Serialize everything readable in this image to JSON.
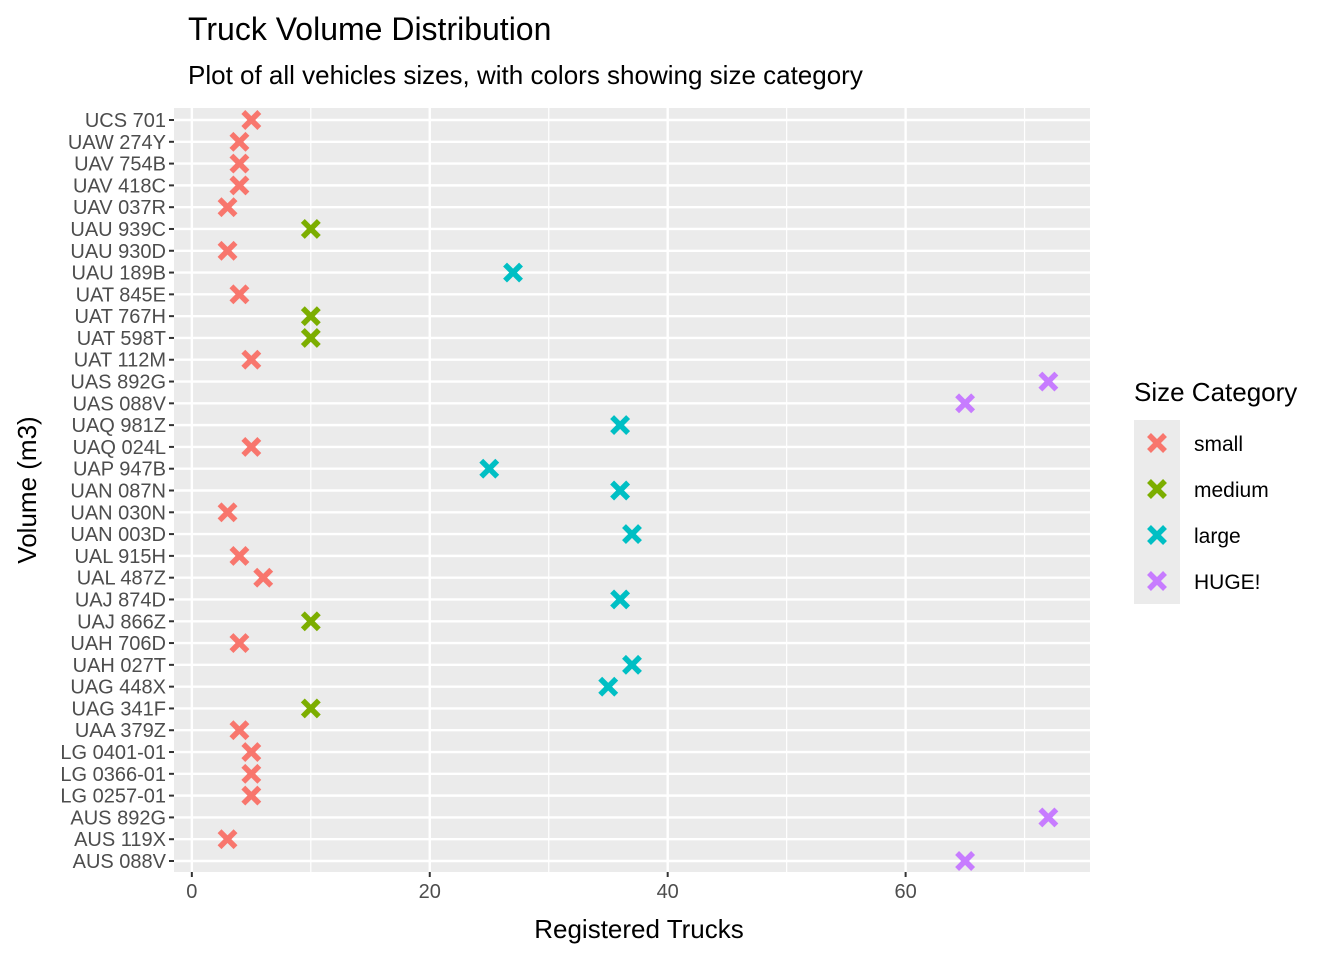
{
  "chart_data": {
    "type": "scatter",
    "title": "Truck Volume Distribution",
    "subtitle": "Plot of all vehicles sizes, with colors showing size category",
    "xlabel": "Registered Trucks",
    "ylabel": "Volume (m3)",
    "xlim": [
      -1.5,
      75.5
    ],
    "xticks": [
      0,
      20,
      40,
      60
    ],
    "grid": true,
    "legend": {
      "title": "Size Category",
      "placement": "right",
      "entries": [
        {
          "name": "small",
          "color": "#F8766D"
        },
        {
          "name": "medium",
          "color": "#7CAE00"
        },
        {
          "name": "large",
          "color": "#00BFC4"
        },
        {
          "name": "HUGE!",
          "color": "#C77CFF"
        }
      ]
    },
    "points": [
      {
        "label": "UCS 701",
        "x": 5,
        "category": "small"
      },
      {
        "label": "UAW 274Y",
        "x": 4,
        "category": "small"
      },
      {
        "label": "UAV 754B",
        "x": 4,
        "category": "small"
      },
      {
        "label": "UAV 418C",
        "x": 4,
        "category": "small"
      },
      {
        "label": "UAV 037R",
        "x": 3,
        "category": "small"
      },
      {
        "label": "UAU 939C",
        "x": 10,
        "category": "medium"
      },
      {
        "label": "UAU 930D",
        "x": 3,
        "category": "small"
      },
      {
        "label": "UAU 189B",
        "x": 27,
        "category": "large"
      },
      {
        "label": "UAT 845E",
        "x": 4,
        "category": "small"
      },
      {
        "label": "UAT 767H",
        "x": 10,
        "category": "medium"
      },
      {
        "label": "UAT 598T",
        "x": 10,
        "category": "medium"
      },
      {
        "label": "UAT 112M",
        "x": 5,
        "category": "small"
      },
      {
        "label": "UAS 892G",
        "x": 72,
        "category": "HUGE!"
      },
      {
        "label": "UAS 088V",
        "x": 65,
        "category": "HUGE!"
      },
      {
        "label": "UAQ 981Z",
        "x": 36,
        "category": "large"
      },
      {
        "label": "UAQ 024L",
        "x": 5,
        "category": "small"
      },
      {
        "label": "UAP 947B",
        "x": 25,
        "category": "large"
      },
      {
        "label": "UAN 087N",
        "x": 36,
        "category": "large"
      },
      {
        "label": "UAN 030N",
        "x": 3,
        "category": "small"
      },
      {
        "label": "UAN 003D",
        "x": 37,
        "category": "large"
      },
      {
        "label": "UAL 915H",
        "x": 4,
        "category": "small"
      },
      {
        "label": "UAL 487Z",
        "x": 6,
        "category": "small"
      },
      {
        "label": "UAJ 874D",
        "x": 36,
        "category": "large"
      },
      {
        "label": "UAJ 866Z",
        "x": 10,
        "category": "medium"
      },
      {
        "label": "UAH 706D",
        "x": 4,
        "category": "small"
      },
      {
        "label": "UAH 027T",
        "x": 37,
        "category": "large"
      },
      {
        "label": "UAG 448X",
        "x": 35,
        "category": "large"
      },
      {
        "label": "UAG 341F",
        "x": 10,
        "category": "medium"
      },
      {
        "label": "UAA 379Z",
        "x": 4,
        "category": "small"
      },
      {
        "label": "LG 0401-01",
        "x": 5,
        "category": "small"
      },
      {
        "label": "LG 0366-01",
        "x": 5,
        "category": "small"
      },
      {
        "label": "LG 0257-01",
        "x": 5,
        "category": "small"
      },
      {
        "label": "AUS 892G",
        "x": 72,
        "category": "HUGE!"
      },
      {
        "label": "AUS 119X",
        "x": 3,
        "category": "small"
      },
      {
        "label": "AUS 088V",
        "x": 65,
        "category": "HUGE!"
      }
    ]
  }
}
